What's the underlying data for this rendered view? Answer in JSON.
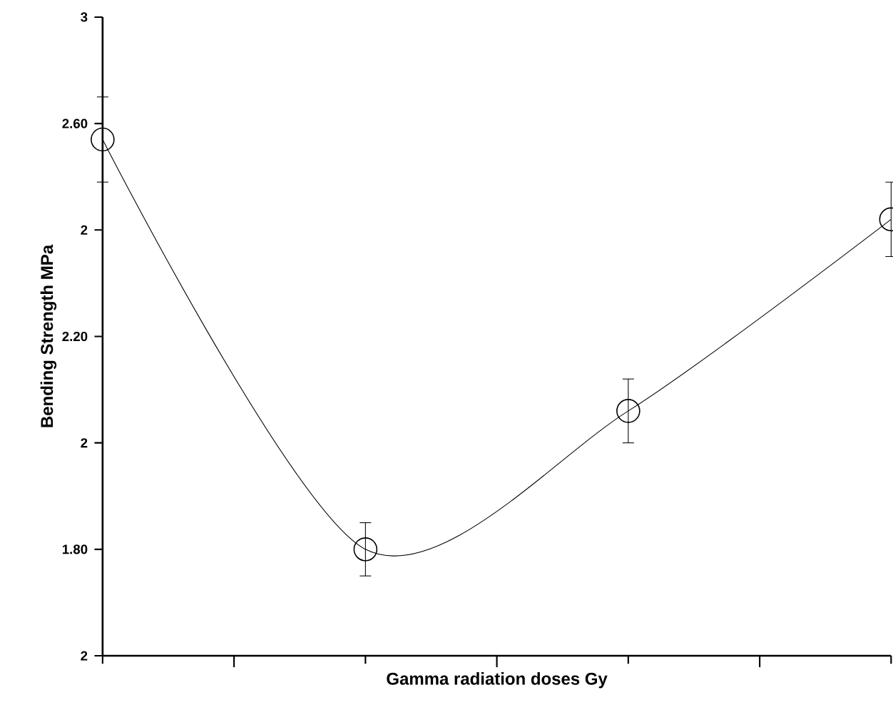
{
  "chart_data": {
    "type": "line",
    "xlabel": "Gamma radiation doses      Gy",
    "ylabel": "Bending Strength      MPa",
    "categories": [
      null,
      null,
      null,
      null
    ],
    "values": [
      2.57,
      1.8,
      2.06,
      2.42
    ],
    "errors": [
      0.08,
      0.05,
      0.06,
      0.07
    ],
    "color": "#000000",
    "marker": "circle",
    "line_style": "solid",
    "ylim": [
      1.6,
      2.8
    ],
    "yticks": [
      {
        "value": 1.6,
        "label": "2"
      },
      {
        "value": 1.8,
        "label": "1.80"
      },
      {
        "value": 2.0,
        "label": "2"
      },
      {
        "value": 2.2,
        "label": "2.20"
      },
      {
        "value": 2.4,
        "label": "2"
      },
      {
        "value": 2.6,
        "label": "2.60"
      },
      {
        "value": 2.8,
        "label": "3"
      }
    ],
    "tick_labels": "y",
    "grid": false
  }
}
